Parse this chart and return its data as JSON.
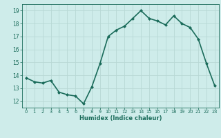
{
  "x": [
    0,
    1,
    2,
    3,
    4,
    5,
    6,
    7,
    8,
    9,
    10,
    11,
    12,
    13,
    14,
    15,
    16,
    17,
    18,
    19,
    20,
    21,
    22,
    23
  ],
  "y": [
    13.8,
    13.5,
    13.4,
    13.6,
    12.7,
    12.5,
    12.4,
    11.8,
    13.1,
    14.9,
    17.0,
    17.5,
    17.8,
    18.4,
    19.0,
    18.4,
    18.2,
    17.9,
    18.6,
    18.0,
    17.7,
    16.8,
    14.9,
    13.2
  ],
  "line_color": "#1a6b5a",
  "marker": "D",
  "marker_size": 2.0,
  "xlabel": "Humidex (Indice chaleur)",
  "xlim": [
    -0.5,
    23.5
  ],
  "ylim": [
    11.5,
    19.5
  ],
  "yticks": [
    12,
    13,
    14,
    15,
    16,
    17,
    18,
    19
  ],
  "xticks": [
    0,
    1,
    2,
    3,
    4,
    5,
    6,
    7,
    8,
    9,
    10,
    11,
    12,
    13,
    14,
    15,
    16,
    17,
    18,
    19,
    20,
    21,
    22,
    23
  ],
  "bg_color": "#ceecea",
  "grid_color": "#b8d8d5",
  "line_width": 1.2,
  "tick_color": "#1a6b5a",
  "xlabel_fontsize": 6.0,
  "xtick_fontsize": 4.8,
  "ytick_fontsize": 5.5
}
